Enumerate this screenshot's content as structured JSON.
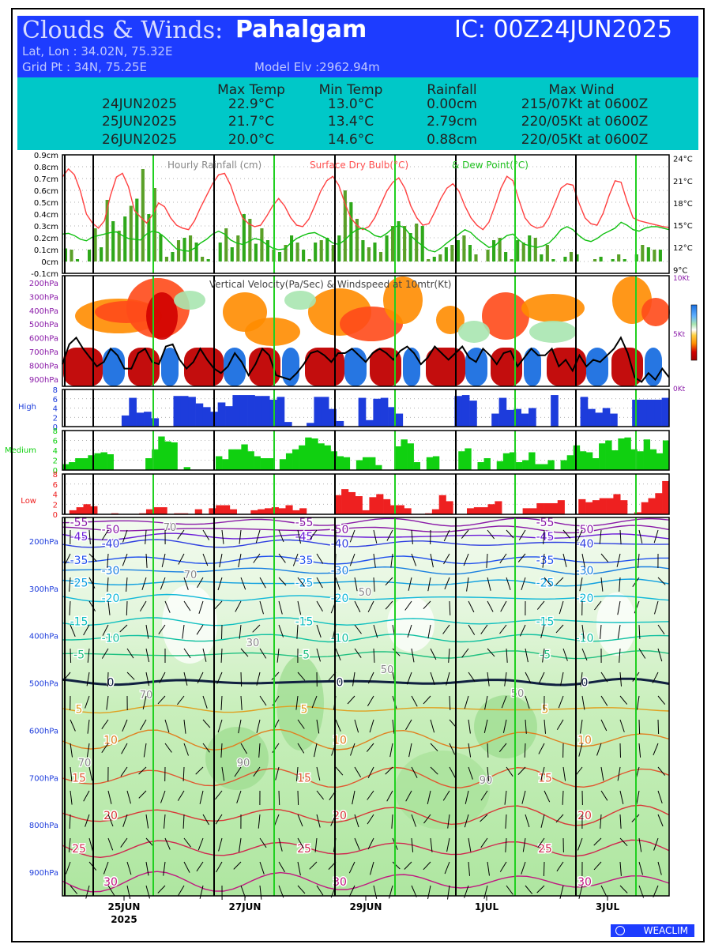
{
  "header": {
    "title_prefix": "Clouds & Winds:",
    "location": "Pahalgam",
    "ic": "IC: 00Z24JUN2025",
    "latlon": "Lat, Lon : 34.02N, 75.32E",
    "gridpt": "Grid Pt  : 34N, 75.25E",
    "model_elv": "Model Elv :2962.94m"
  },
  "summary": {
    "columns": [
      "Max Temp",
      "Min Temp",
      "Rainfall",
      "Max Wind"
    ],
    "rows": [
      {
        "date": "24JUN2025",
        "max_temp": "22.9°C",
        "min_temp": "13.0°C",
        "rainfall": "0.00cm",
        "max_wind": "215/07Kt at 0600Z"
      },
      {
        "date": "25JUN2025",
        "max_temp": "21.7°C",
        "min_temp": "13.4°C",
        "rainfall": "2.79cm",
        "max_wind": "220/05Kt at 0600Z"
      },
      {
        "date": "26JUN2025",
        "max_temp": "20.0°C",
        "min_temp": "14.6°C",
        "rainfall": "0.88cm",
        "max_wind": "220/05Kt at 0600Z"
      }
    ]
  },
  "chart_data": [
    {
      "type": "bar",
      "panel": "rain-temp",
      "legend": [
        {
          "label": "Hourly Rainfall (cm)",
          "color": "#888888"
        },
        {
          "label": "Surface Dry Bulb(°C)",
          "color": "#ff5050"
        },
        {
          "label": "& Dew Point(°C)",
          "color": "#20c020"
        }
      ],
      "y_left_ticks": [
        "0.9cm",
        "0.8cm",
        "0.7cm",
        "0.6cm",
        "0.5cm",
        "0.4cm",
        "0.3cm",
        "0.2cm",
        "0.1cm",
        "0cm",
        "-0.1cm"
      ],
      "y_right_ticks": [
        "24°C",
        "21°C",
        "18°C",
        "15°C",
        "12°C",
        "9°C"
      ],
      "ylim_rain": [
        -0.1,
        0.9
      ],
      "ylim_temp": [
        8.5,
        24.5
      ],
      "rain_cm": [
        0.11,
        0.1,
        0.02,
        0.0,
        0.1,
        0.28,
        0.12,
        0.52,
        0.34,
        0.26,
        0.38,
        0.47,
        0.53,
        0.78,
        0.4,
        0.62,
        0.23,
        0.04,
        0.08,
        0.18,
        0.2,
        0.22,
        0.16,
        0.04,
        0.02,
        0.0,
        0.16,
        0.28,
        0.12,
        0.22,
        0.4,
        0.36,
        0.15,
        0.28,
        0.18,
        0.1,
        0.08,
        0.14,
        0.22,
        0.16,
        0.1,
        0.02,
        0.16,
        0.18,
        0.2,
        0.14,
        0.22,
        0.6,
        0.5,
        0.36,
        0.18,
        0.12,
        0.16,
        0.08,
        0.22,
        0.3,
        0.34,
        0.3,
        0.24,
        0.32,
        0.3,
        0.02,
        0.04,
        0.06,
        0.12,
        0.14,
        0.18,
        0.22,
        0.14,
        0.06,
        0.0,
        0.1,
        0.18,
        0.2,
        0.08,
        0.02,
        0.18,
        0.16,
        0.22,
        0.2,
        0.06,
        0.14,
        0.02,
        0.0,
        0.04,
        0.08,
        0.06,
        0.0,
        0.0,
        0.02,
        0.04,
        0.0,
        0.02,
        0.06,
        0.02,
        0.0,
        0.06,
        0.14,
        0.12,
        0.1,
        0.1,
        0.0
      ],
      "dry_bulb_c": [
        21.5,
        22.6,
        21.8,
        19.6,
        16.5,
        15.3,
        14.6,
        15.6,
        19.0,
        21.5,
        22.0,
        20.2,
        17.0,
        16.1,
        15.3,
        16.4,
        18.0,
        17.5,
        16.0,
        15.0,
        14.6,
        14.4,
        15.6,
        17.4,
        19.0,
        20.6,
        21.8,
        22.0,
        20.4,
        18.0,
        16.0,
        15.2,
        14.8,
        15.0,
        16.2,
        17.6,
        18.6,
        17.6,
        16.0,
        15.0,
        14.8,
        15.8,
        17.6,
        19.6,
        21.0,
        21.6,
        20.4,
        18.0,
        16.0,
        15.0,
        14.4,
        14.8,
        16.0,
        17.8,
        19.6,
        20.8,
        21.4,
        20.0,
        17.6,
        16.0,
        15.0,
        15.2,
        16.8,
        18.6,
        20.0,
        20.6,
        19.6,
        17.6,
        16.0,
        15.0,
        14.4,
        15.4,
        17.6,
        20.0,
        21.6,
        21.0,
        18.4,
        16.0,
        15.0,
        14.6,
        14.8,
        16.0,
        18.0,
        20.0,
        20.6,
        20.4,
        18.0,
        16.0,
        15.2,
        15.0,
        16.6,
        19.0,
        21.0,
        20.8,
        18.2,
        16.0,
        15.6,
        15.4,
        15.2,
        15.0,
        14.8,
        14.7
      ],
      "dew_point_c": [
        13.8,
        13.9,
        13.6,
        13.1,
        12.9,
        13.4,
        13.6,
        13.8,
        14.0,
        14.1,
        13.6,
        13.2,
        13.1,
        13.0,
        13.8,
        14.2,
        14.0,
        13.4,
        12.6,
        11.8,
        11.6,
        11.5,
        11.9,
        12.6,
        13.1,
        13.8,
        14.2,
        13.8,
        13.0,
        12.6,
        12.4,
        12.8,
        13.2,
        13.0,
        12.4,
        11.9,
        11.7,
        11.8,
        12.6,
        13.2,
        13.6,
        13.9,
        14.0,
        13.6,
        13.2,
        12.6,
        12.4,
        13.0,
        13.8,
        14.4,
        14.6,
        14.2,
        13.6,
        13.4,
        13.9,
        14.6,
        15.0,
        14.6,
        13.6,
        12.8,
        12.2,
        11.6,
        11.4,
        11.9,
        12.6,
        13.2,
        13.8,
        14.4,
        14.0,
        13.2,
        12.6,
        12.0,
        12.2,
        13.0,
        13.6,
        13.8,
        13.0,
        12.4,
        12.2,
        12.0,
        12.2,
        12.6,
        13.4,
        14.4,
        14.8,
        14.4,
        13.6,
        13.0,
        12.8,
        13.2,
        13.8,
        14.2,
        14.6,
        15.4,
        15.0,
        14.4,
        14.2,
        14.6,
        14.8,
        14.8,
        14.6,
        14.4
      ]
    },
    {
      "type": "heatmap",
      "panel": "vertical-velocity",
      "title": "Vertical Velocity(Pa/Sec) & Windspeed at 10mtr(Kt)",
      "y_ticks": [
        "200hPa",
        "300hPa",
        "400hPa",
        "500hPa",
        "600hPa",
        "700hPa",
        "800hPa",
        "900hPa"
      ],
      "right_ticks": [
        "10Kt",
        "5Kt",
        "0Kt"
      ],
      "windspeed_ylim_kt": [
        0,
        10
      ],
      "colorbar_colors": [
        "#1a6fe0",
        "#5fb0ff",
        "#a9e6b0",
        "#ffffff",
        "#ffd040",
        "#ff8c00",
        "#ff4a1a",
        "#d20000",
        "#a00000"
      ],
      "wind10m_kt": [
        2.0,
        3.8,
        4.4,
        3.4,
        2.6,
        1.8,
        2.2,
        3.4,
        2.8,
        1.6,
        1.6,
        3.0,
        3.4,
        2.2,
        2.0,
        3.6,
        3.8,
        2.4,
        1.6,
        2.2,
        3.4,
        2.4,
        1.6,
        1.2,
        1.8,
        3.0,
        2.2,
        1.0,
        2.0,
        3.4,
        2.8,
        1.0,
        0.8,
        0.6,
        1.2,
        2.0,
        3.0,
        3.2,
        2.8,
        2.2,
        3.0,
        3.0,
        3.4,
        2.8,
        2.2,
        3.0,
        3.4,
        3.0,
        2.4,
        3.2,
        3.6,
        3.0,
        2.0,
        2.6,
        3.6,
        3.0,
        2.4,
        3.0,
        3.6,
        2.6,
        2.2,
        3.4,
        2.8,
        2.0,
        3.0,
        3.2,
        1.8,
        2.6,
        3.4,
        2.8,
        2.8,
        3.4,
        1.8,
        2.4,
        1.4,
        2.8,
        1.8,
        2.4,
        2.2,
        2.8,
        3.4,
        4.4,
        3.0,
        0.8,
        0.4,
        1.2,
        0.6,
        1.6,
        0.8
      ]
    },
    {
      "type": "bar",
      "panel": "high-cloud",
      "label": "High",
      "color": "#1d3cdc",
      "y_ticks": [
        "8",
        "6",
        "4",
        "2",
        "0"
      ],
      "ylim": [
        0,
        8
      ],
      "values": [
        0,
        0,
        0,
        0,
        0,
        0,
        0,
        0,
        2.4,
        6.2,
        3.0,
        3.2,
        1.8,
        0,
        0,
        6.6,
        6.6,
        6.4,
        5.0,
        4.2,
        3.2,
        5.2,
        4.4,
        6.8,
        6.8,
        6.8,
        6.6,
        6.6,
        5.8,
        6.4,
        1.0,
        0,
        0,
        0.8,
        6.4,
        6.4,
        3.8,
        1.2,
        0,
        0,
        6.2,
        1.4,
        6.0,
        6.2,
        4.2,
        2.8,
        0,
        0,
        0,
        0,
        0,
        0,
        0,
        6.6,
        6.8,
        5.6,
        0,
        0,
        2.8,
        6.2,
        3.6,
        3.8,
        2.8,
        4.0,
        0,
        0,
        6.8,
        0,
        0,
        0,
        6.4,
        3.8,
        3.0,
        4.0,
        2.8,
        0,
        0,
        5.8,
        5.8,
        5.8,
        5.8,
        6.2
      ]
    },
    {
      "type": "bar",
      "panel": "medium-cloud",
      "label": "Medium",
      "color": "#10d010",
      "y_ticks": [
        "8",
        "6",
        "4",
        "2",
        "0"
      ],
      "ylim": [
        0,
        8
      ],
      "values": [
        1.2,
        1.6,
        2.4,
        2.4,
        3.0,
        3.4,
        3.6,
        3.2,
        0,
        0,
        0,
        0,
        0,
        2.4,
        4.2,
        6.8,
        5.8,
        5.6,
        0,
        0.6,
        0,
        0,
        0,
        0,
        2.8,
        2.2,
        4.2,
        4.2,
        5.2,
        3.8,
        2.8,
        2.4,
        2.4,
        0,
        2.2,
        3.4,
        4.2,
        5.0,
        6.6,
        6.4,
        5.4,
        5.0,
        3.8,
        2.8,
        2.6,
        0,
        2.0,
        2.6,
        2.6,
        1.0,
        0,
        0,
        4.8,
        6.2,
        5.4,
        1.6,
        0,
        2.6,
        2.8,
        0,
        0,
        0,
        3.8,
        4.4,
        0,
        1.6,
        2.4,
        0,
        1.8,
        3.4,
        3.6,
        1.6,
        2.0,
        3.6,
        1.2,
        1.2,
        2.0,
        0,
        2.0,
        3.0,
        5.0,
        3.8,
        3.6,
        2.4,
        5.4,
        6.0,
        4.0,
        6.4,
        6.6,
        4.2,
        3.8,
        6.2,
        4.2,
        3.4,
        6.0
      ]
    },
    {
      "type": "bar",
      "panel": "low-cloud",
      "label": "Low",
      "color": "#ee2020",
      "y_ticks": [
        "8",
        "6",
        "4",
        "2",
        "0"
      ],
      "ylim": [
        0,
        8
      ],
      "values": [
        0,
        0.8,
        1.4,
        2.0,
        1.6,
        0,
        0,
        0.2,
        0,
        0,
        0,
        0.2,
        1.0,
        1.4,
        1.4,
        0,
        0.2,
        0.2,
        0,
        1.0,
        0,
        1.2,
        1.8,
        1.8,
        1.0,
        0,
        0,
        0.8,
        1.0,
        1.2,
        1.4,
        1.2,
        1.8,
        0.8,
        1.2,
        0,
        0,
        0,
        0,
        3.8,
        5.0,
        4.4,
        3.6,
        0.8,
        3.4,
        4.0,
        3.0,
        1.8,
        1.8,
        1.2,
        0,
        0,
        0.2,
        1.0,
        3.8,
        2.6,
        0,
        0,
        1.2,
        1.4,
        1.4,
        2.0,
        2.6,
        0,
        0,
        0,
        1.2,
        1.2,
        2.2,
        2.2,
        2.2,
        2.8,
        0,
        0,
        3.0,
        2.4,
        2.8,
        3.2,
        3.2,
        4.0,
        2.8,
        0,
        0.4,
        2.4,
        3.2,
        4.2,
        6.6
      ]
    },
    {
      "type": "line",
      "panel": "winds-temperature",
      "description_levels": "Temperature contours (°C) and wind barbs over pressure levels",
      "y_ticks": [
        "200hPa",
        "300hPa",
        "400hPa",
        "500hPa",
        "600hPa",
        "700hPa",
        "800hPa",
        "900hPa"
      ],
      "ylim_hpa": [
        150,
        950
      ],
      "contours": [
        {
          "label": "-55",
          "color": "#8a1aa8",
          "p_hpa": 160
        },
        {
          "label": "-50",
          "color": "#8a1aa8",
          "p_hpa": 175
        },
        {
          "label": "-45",
          "color": "#6a1ad8",
          "p_hpa": 190
        },
        {
          "label": "-40",
          "color": "#3040e0",
          "p_hpa": 205
        },
        {
          "label": "-35",
          "color": "#2050ee",
          "p_hpa": 240
        },
        {
          "label": "-30",
          "color": "#1a80e0",
          "p_hpa": 262
        },
        {
          "label": "-25",
          "color": "#10a0e0",
          "p_hpa": 288
        },
        {
          "label": "-20",
          "color": "#10b8d8",
          "p_hpa": 320
        },
        {
          "label": "-15",
          "color": "#10c0c0",
          "p_hpa": 370
        },
        {
          "label": "-10",
          "color": "#10c0a0",
          "p_hpa": 405
        },
        {
          "label": "-5",
          "color": "#20c080",
          "p_hpa": 440
        },
        {
          "label": "0",
          "color": "#102040",
          "p_hpa": 498
        },
        {
          "label": "5",
          "color": "#e0a020",
          "p_hpa": 555
        },
        {
          "label": "10",
          "color": "#e08020",
          "p_hpa": 620
        },
        {
          "label": "15",
          "color": "#e05830",
          "p_hpa": 700
        },
        {
          "label": "20",
          "color": "#d83838",
          "p_hpa": 780
        },
        {
          "label": "25",
          "color": "#d02850",
          "p_hpa": 850
        },
        {
          "label": "30",
          "color": "#c01880",
          "p_hpa": 920
        }
      ],
      "rh_labels": [
        "70",
        "70",
        "50",
        "30",
        "50",
        "70",
        "50",
        "90",
        "90",
        "70"
      ]
    }
  ],
  "x_axis": {
    "ticks": [
      "25JUN",
      "27JUN",
      "29JUN",
      "1JUL",
      "3JUL"
    ],
    "year_label": "2025"
  },
  "footer": {
    "brand": "WEACLIM",
    "brand_color": "#1d3cff"
  }
}
